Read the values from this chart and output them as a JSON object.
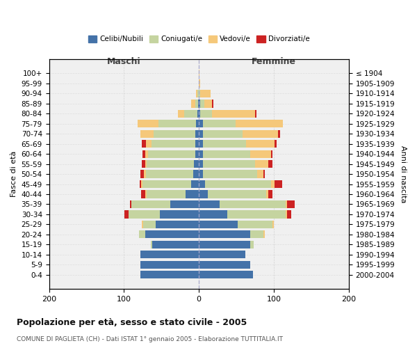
{
  "age_groups": [
    "0-4",
    "5-9",
    "10-14",
    "15-19",
    "20-24",
    "25-29",
    "30-34",
    "35-39",
    "40-44",
    "45-49",
    "50-54",
    "55-59",
    "60-64",
    "65-69",
    "70-74",
    "75-79",
    "80-84",
    "85-89",
    "90-94",
    "95-99",
    "100+"
  ],
  "birth_years": [
    "2000-2004",
    "1995-1999",
    "1990-1994",
    "1985-1989",
    "1980-1984",
    "1975-1979",
    "1970-1974",
    "1965-1969",
    "1960-1964",
    "1955-1959",
    "1950-1954",
    "1945-1949",
    "1940-1944",
    "1935-1939",
    "1930-1934",
    "1925-1929",
    "1920-1924",
    "1915-1919",
    "1910-1914",
    "1905-1909",
    "≤ 1904"
  ],
  "colors": {
    "celibi": "#4472a8",
    "coniugati": "#c5d4a0",
    "vedovi": "#f5c87a",
    "divorziati": "#cc2222"
  },
  "maschi": {
    "celibi": [
      78,
      78,
      78,
      62,
      72,
      58,
      52,
      38,
      18,
      10,
      8,
      7,
      5,
      5,
      5,
      4,
      2,
      1,
      0,
      0,
      0
    ],
    "coniugati": [
      0,
      0,
      0,
      2,
      8,
      16,
      42,
      52,
      52,
      65,
      63,
      63,
      63,
      58,
      55,
      50,
      18,
      4,
      2,
      0,
      0
    ],
    "vedovi": [
      0,
      0,
      0,
      0,
      0,
      2,
      0,
      0,
      2,
      2,
      2,
      2,
      4,
      8,
      18,
      28,
      8,
      5,
      2,
      0,
      0
    ],
    "divorziati": [
      0,
      0,
      0,
      0,
      0,
      0,
      5,
      2,
      5,
      2,
      5,
      4,
      3,
      5,
      0,
      0,
      0,
      0,
      0,
      0,
      0
    ]
  },
  "femmine": {
    "celibi": [
      72,
      68,
      62,
      68,
      68,
      52,
      38,
      28,
      12,
      8,
      5,
      5,
      5,
      5,
      5,
      5,
      2,
      2,
      0,
      0,
      0
    ],
    "coniugati": [
      0,
      0,
      0,
      5,
      18,
      46,
      78,
      88,
      78,
      88,
      73,
      70,
      63,
      58,
      53,
      44,
      15,
      5,
      2,
      0,
      0
    ],
    "vedovi": [
      0,
      0,
      0,
      0,
      2,
      2,
      2,
      2,
      3,
      5,
      8,
      18,
      28,
      38,
      48,
      63,
      58,
      10,
      14,
      2,
      1
    ],
    "divorziati": [
      0,
      0,
      0,
      0,
      0,
      0,
      5,
      10,
      5,
      10,
      2,
      5,
      2,
      3,
      2,
      0,
      2,
      2,
      0,
      0,
      0
    ]
  },
  "xlim": [
    -200,
    200
  ],
  "xticks": [
    -200,
    -100,
    0,
    100,
    200
  ],
  "xticklabels": [
    "200",
    "100",
    "0",
    "100",
    "200"
  ],
  "title": "Popolazione per età, sesso e stato civile - 2005",
  "subtitle": "COMUNE DI PAGLIETA (CH) - Dati ISTAT 1° gennaio 2005 - Elaborazione TUTTITALIA.IT",
  "ylabel_left": "Fasce di età",
  "ylabel_right": "Anni di nascita",
  "label_maschi": "Maschi",
  "label_femmine": "Femmine",
  "legend_labels": [
    "Celibi/Nubili",
    "Coniugati/e",
    "Vedovi/e",
    "Divorziati/e"
  ],
  "background_color": "#f0f0f0",
  "grid_color": "#cccccc"
}
